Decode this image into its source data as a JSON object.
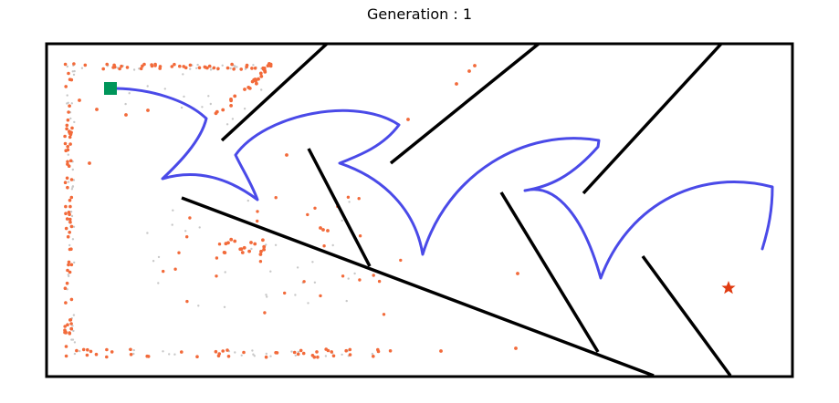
{
  "title": "Generation : 1",
  "colors": {
    "background": "#ffffff",
    "frame": "#000000",
    "walls": "#000000",
    "trajectory": "#4a4ae8",
    "start_marker": "#00955a",
    "goal_marker": "#e03a10",
    "visited_points": "#f26a3a",
    "faint_points": "#c8c8c8"
  },
  "markers": {
    "start": "square",
    "goal": "star"
  }
}
